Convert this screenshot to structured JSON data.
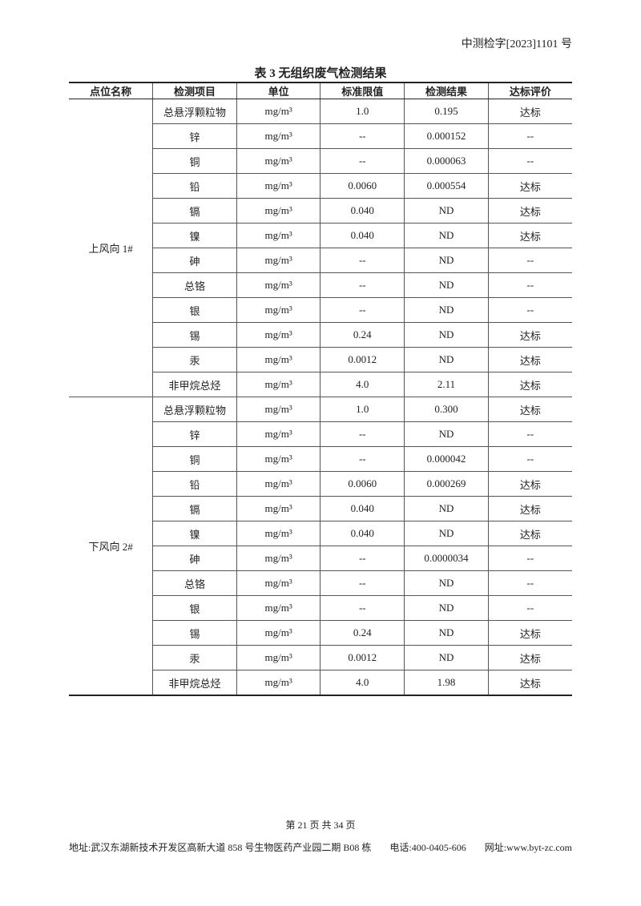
{
  "header": {
    "report_no": "中测检字[2023]1101 号"
  },
  "table": {
    "title": "表 3 无组织废气检测结果",
    "columns": [
      "点位名称",
      "检测项目",
      "单位",
      "标准限值",
      "检测结果",
      "达标评价"
    ],
    "groups": [
      {
        "location": "上风向 1#",
        "rows": [
          [
            "总悬浮颗粒物",
            "mg/m³",
            "1.0",
            "0.195",
            "达标"
          ],
          [
            "锌",
            "mg/m³",
            "--",
            "0.000152",
            "--"
          ],
          [
            "铜",
            "mg/m³",
            "--",
            "0.000063",
            "--"
          ],
          [
            "铅",
            "mg/m³",
            "0.0060",
            "0.000554",
            "达标"
          ],
          [
            "镉",
            "mg/m³",
            "0.040",
            "ND",
            "达标"
          ],
          [
            "镍",
            "mg/m³",
            "0.040",
            "ND",
            "达标"
          ],
          [
            "砷",
            "mg/m³",
            "--",
            "ND",
            "--"
          ],
          [
            "总铬",
            "mg/m³",
            "--",
            "ND",
            "--"
          ],
          [
            "银",
            "mg/m³",
            "--",
            "ND",
            "--"
          ],
          [
            "锡",
            "mg/m³",
            "0.24",
            "ND",
            "达标"
          ],
          [
            "汞",
            "mg/m³",
            "0.0012",
            "ND",
            "达标"
          ],
          [
            "非甲烷总烃",
            "mg/m³",
            "4.0",
            "2.11",
            "达标"
          ]
        ]
      },
      {
        "location": "下风向 2#",
        "rows": [
          [
            "总悬浮颗粒物",
            "mg/m³",
            "1.0",
            "0.300",
            "达标"
          ],
          [
            "锌",
            "mg/m³",
            "--",
            "ND",
            "--"
          ],
          [
            "铜",
            "mg/m³",
            "--",
            "0.000042",
            "--"
          ],
          [
            "铅",
            "mg/m³",
            "0.0060",
            "0.000269",
            "达标"
          ],
          [
            "镉",
            "mg/m³",
            "0.040",
            "ND",
            "达标"
          ],
          [
            "镍",
            "mg/m³",
            "0.040",
            "ND",
            "达标"
          ],
          [
            "砷",
            "mg/m³",
            "--",
            "0.0000034",
            "--"
          ],
          [
            "总铬",
            "mg/m³",
            "--",
            "ND",
            "--"
          ],
          [
            "银",
            "mg/m³",
            "--",
            "ND",
            "--"
          ],
          [
            "锡",
            "mg/m³",
            "0.24",
            "ND",
            "达标"
          ],
          [
            "汞",
            "mg/m³",
            "0.0012",
            "ND",
            "达标"
          ],
          [
            "非甲烷总烃",
            "mg/m³",
            "4.0",
            "1.98",
            "达标"
          ]
        ]
      }
    ]
  },
  "footer": {
    "page": "第 21 页 共 34 页",
    "address": "地址:武汉东湖新技术开发区高新大道 858 号生物医药产业园二期 B08 栋",
    "phone": "电话:400-0405-606",
    "website": "网址:www.byt-zc.com"
  }
}
